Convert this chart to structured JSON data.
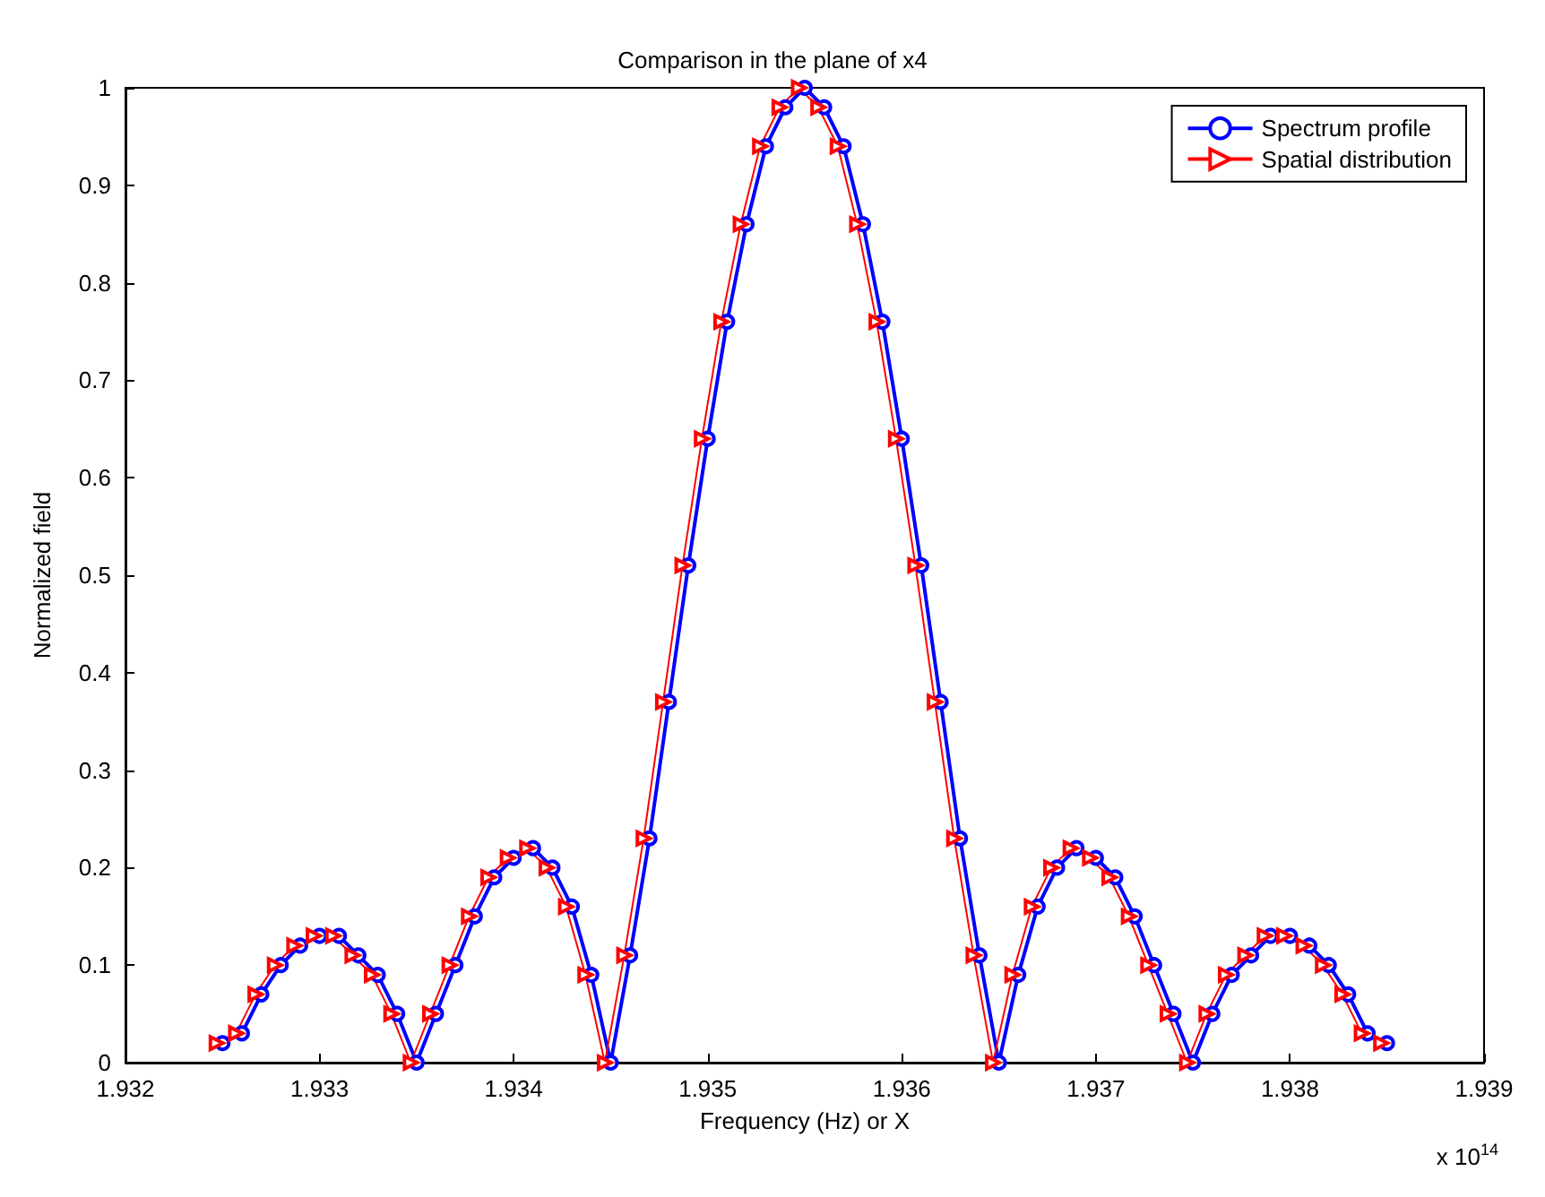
{
  "chart_data": {
    "type": "line",
    "title": "Comparison in the plane of x4",
    "xlabel": "Frequency (Hz) or X",
    "ylabel": "Normalized field",
    "annotations": [
      "x 10$^{14}$"
    ],
    "xlim": [
      1.932,
      1.939
    ],
    "xticks": [
      1.932,
      1.933,
      1.934,
      1.935,
      1.936,
      1.937,
      1.938,
      1.939
    ],
    "ylim": [
      0,
      1
    ],
    "yticks": [
      0,
      0.1,
      0.2,
      0.3,
      0.4,
      0.5,
      0.6,
      0.7,
      0.8,
      0.9,
      1
    ],
    "grid": false,
    "legend": "top right",
    "series": [
      {
        "name": "Spectrum profile",
        "color": "#0000ff",
        "marker": "circle",
        "x": [
          1.9325,
          1.9326,
          1.9327,
          1.9328,
          1.9329,
          1.933,
          1.9331,
          1.9332,
          1.9333,
          1.9334,
          1.9335,
          1.9336,
          1.9337,
          1.9338,
          1.9339,
          1.934,
          1.9341,
          1.9342,
          1.9343,
          1.9344,
          1.9345,
          1.9346,
          1.9347,
          1.9348,
          1.9349,
          1.935,
          1.9351,
          1.9352,
          1.9353,
          1.9354,
          1.9355,
          1.9356,
          1.9357,
          1.9358,
          1.9359,
          1.936,
          1.9361,
          1.9362,
          1.9363,
          1.9364,
          1.9365,
          1.9366,
          1.9367,
          1.9368,
          1.9369,
          1.937,
          1.9371,
          1.9372,
          1.9373,
          1.9374,
          1.9375,
          1.9376,
          1.9377,
          1.9378,
          1.9379,
          1.938,
          1.9381,
          1.9382,
          1.9383,
          1.9384,
          1.9385
        ],
        "values": [
          0.02,
          0.03,
          0.07,
          0.1,
          0.12,
          0.13,
          0.13,
          0.11,
          0.09,
          0.05,
          0,
          0.05,
          0.1,
          0.15,
          0.19,
          0.21,
          0.22,
          0.2,
          0.16,
          0.09,
          0,
          0.11,
          0.23,
          0.37,
          0.51,
          0.64,
          0.76,
          0.86,
          0.94,
          0.98,
          1,
          0.98,
          0.94,
          0.86,
          0.76,
          0.64,
          0.51,
          0.37,
          0.23,
          0.11,
          0,
          0.09,
          0.16,
          0.2,
          0.22,
          0.21,
          0.19,
          0.15,
          0.1,
          0.05,
          0,
          0.05,
          0.09,
          0.11,
          0.13,
          0.13,
          0.12,
          0.1,
          0.07,
          0.03,
          0.02
        ]
      },
      {
        "name": "Spatial distribution",
        "color": "#ff0000",
        "marker": "triangle",
        "x": [
          1.93247,
          1.93257,
          1.93267,
          1.93277,
          1.93287,
          1.93297,
          1.93307,
          1.93317,
          1.93327,
          1.93337,
          1.93347,
          1.93357,
          1.93367,
          1.93377,
          1.93387,
          1.93397,
          1.93407,
          1.93417,
          1.93427,
          1.93437,
          1.93447,
          1.93457,
          1.93467,
          1.93477,
          1.93487,
          1.93497,
          1.93507,
          1.93517,
          1.93527,
          1.93537,
          1.93547,
          1.93557,
          1.93567,
          1.93577,
          1.93587,
          1.93597,
          1.93607,
          1.93617,
          1.93627,
          1.93637,
          1.93647,
          1.93657,
          1.93667,
          1.93677,
          1.93687,
          1.93697,
          1.93707,
          1.93717,
          1.93727,
          1.93737,
          1.93747,
          1.93757,
          1.93767,
          1.93777,
          1.93787,
          1.93797,
          1.93807,
          1.93817,
          1.93827,
          1.93837,
          1.93847
        ],
        "values": [
          0.02,
          0.03,
          0.07,
          0.1,
          0.12,
          0.13,
          0.13,
          0.11,
          0.09,
          0.05,
          0,
          0.05,
          0.1,
          0.15,
          0.19,
          0.21,
          0.22,
          0.2,
          0.16,
          0.09,
          0,
          0.11,
          0.23,
          0.37,
          0.51,
          0.64,
          0.76,
          0.86,
          0.94,
          0.98,
          1,
          0.98,
          0.94,
          0.86,
          0.76,
          0.64,
          0.51,
          0.37,
          0.23,
          0.11,
          0,
          0.09,
          0.16,
          0.2,
          0.22,
          0.21,
          0.19,
          0.15,
          0.1,
          0.05,
          0,
          0.05,
          0.09,
          0.11,
          0.13,
          0.13,
          0.12,
          0.1,
          0.07,
          0.03,
          0.02
        ]
      }
    ]
  }
}
